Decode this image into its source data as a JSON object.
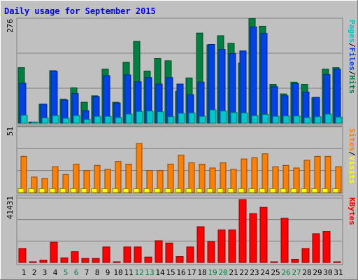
{
  "chart_data": [
    {
      "type": "bar",
      "title": "Daily usage for September 2015",
      "ymax_label": "276",
      "ylim": [
        0,
        276
      ],
      "legend": [
        {
          "label": "Pages",
          "color": "#00c8c8"
        },
        {
          "label": "Files",
          "color": "#0042e8"
        },
        {
          "label": "Hits",
          "color": "#008040"
        }
      ],
      "legend_separator": "/",
      "grid": true,
      "categories": [
        "1",
        "2",
        "3",
        "4",
        "5",
        "6",
        "7",
        "8",
        "9",
        "10",
        "11",
        "12",
        "13",
        "14",
        "15",
        "16",
        "17",
        "18",
        "19",
        "20",
        "21",
        "22",
        "23",
        "24",
        "25",
        "26",
        "27",
        "28",
        "29",
        "30",
        "31"
      ],
      "weekend_days": [
        "5",
        "6",
        "12",
        "13",
        "19",
        "20",
        "26",
        "27"
      ],
      "series": [
        {
          "name": "Hits",
          "color": "#008040",
          "values": [
            146,
            3,
            50,
            138,
            63,
            93,
            55,
            72,
            142,
            55,
            160,
            215,
            137,
            170,
            164,
            84,
            119,
            237,
            206,
            230,
            210,
            158,
            276,
            255,
            102,
            77,
            108,
            102,
            67,
            142,
            146
          ]
        },
        {
          "name": "Files",
          "color": "#0042e8",
          "values": [
            105,
            3,
            50,
            137,
            61,
            78,
            33,
            70,
            125,
            53,
            127,
            109,
            120,
            103,
            120,
            103,
            75,
            108,
            207,
            194,
            183,
            190,
            253,
            236,
            96,
            72,
            104,
            82,
            68,
            128,
            142
          ]
        },
        {
          "name": "Pages",
          "color": "#00c8c8",
          "values": [
            21,
            3,
            14,
            20,
            13,
            20,
            10,
            18,
            18,
            15,
            24,
            31,
            32,
            30,
            17,
            26,
            27,
            18,
            35,
            32,
            28,
            27,
            20,
            23,
            18,
            19,
            19,
            15,
            17,
            24,
            16
          ]
        }
      ]
    },
    {
      "type": "bar",
      "ymax_label": "51",
      "ylim": [
        0,
        51
      ],
      "legend": [
        {
          "label": "Sites",
          "color": "#ff8000"
        },
        {
          "label": "Visits",
          "color": "#ffff00"
        }
      ],
      "legend_separator": "/",
      "grid": true,
      "categories": [
        "1",
        "2",
        "3",
        "4",
        "5",
        "6",
        "7",
        "8",
        "9",
        "10",
        "11",
        "12",
        "13",
        "14",
        "15",
        "16",
        "17",
        "18",
        "19",
        "20",
        "21",
        "22",
        "23",
        "24",
        "25",
        "26",
        "27",
        "28",
        "29",
        "30",
        "31"
      ],
      "series": [
        {
          "name": "Visits",
          "color": "#ffff00",
          "values": [
            3,
            3,
            3,
            3,
            3,
            3,
            3,
            3,
            3,
            3,
            3,
            3,
            3,
            3,
            3,
            3,
            3,
            3,
            3,
            3,
            3,
            3,
            3,
            3,
            3,
            3,
            3,
            3,
            3,
            3,
            3
          ]
        },
        {
          "name": "Sites",
          "color": "#ff8000",
          "values": [
            28,
            12,
            11,
            20,
            14,
            22,
            17,
            21,
            18,
            24,
            22,
            38,
            17,
            17,
            22,
            29,
            23,
            22,
            19,
            23,
            18,
            26,
            27,
            30,
            20,
            21,
            19,
            25,
            28,
            28,
            20
          ]
        }
      ]
    },
    {
      "type": "bar",
      "ymax_label": "41431",
      "ylim": [
        0,
        41431
      ],
      "legend": [
        {
          "label": "KBytes",
          "color": "#ff0000"
        }
      ],
      "grid": true,
      "categories": [
        "1",
        "2",
        "3",
        "4",
        "5",
        "6",
        "7",
        "8",
        "9",
        "10",
        "11",
        "12",
        "13",
        "14",
        "15",
        "16",
        "17",
        "18",
        "19",
        "20",
        "21",
        "22",
        "23",
        "24",
        "25",
        "26",
        "27",
        "28",
        "29",
        "30",
        "31"
      ],
      "series": [
        {
          "name": "KBytes",
          "color": "#ff0000",
          "values": [
            9000,
            3,
            1500,
            13000,
            3000,
            7000,
            2600,
            2600,
            10000,
            3,
            10000,
            10000,
            3500,
            14000,
            12500,
            3800,
            10000,
            23000,
            13500,
            21000,
            21000,
            40500,
            31500,
            35500,
            3,
            28500,
            2000,
            9000,
            18500,
            20000,
            3
          ]
        }
      ]
    }
  ]
}
